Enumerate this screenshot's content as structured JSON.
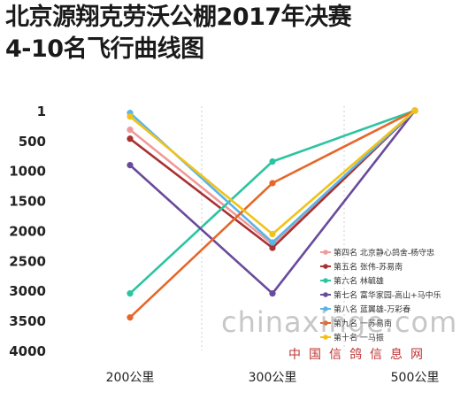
{
  "title": {
    "line1": "北京源翔克劳沃公棚2017年决赛",
    "line2": "4-10名飞行曲线图"
  },
  "chart_data": {
    "type": "line",
    "title": "北京源翔克劳沃公棚2017年决赛 4-10名飞行曲线图",
    "categories": [
      "200公里",
      "300公里",
      "500公里"
    ],
    "y_ticks": [
      "1",
      "500",
      "1000",
      "1500",
      "2000",
      "2500",
      "3000",
      "3500",
      "4000"
    ],
    "ylim": [
      1,
      4000
    ],
    "y_inverted": true,
    "grid": "vertical-dashed",
    "legend_position": "right",
    "series": [
      {
        "name": "第四名 北京静心鸽舍-杨守忠",
        "color": "#f09a9a",
        "values": [
          320,
          2230,
          1
        ]
      },
      {
        "name": "第五名 张伟-苏易南",
        "color": "#a83232",
        "values": [
          470,
          2290,
          1
        ]
      },
      {
        "name": "第六名 林毓雄",
        "color": "#2bc4a0",
        "values": [
          3050,
          850,
          1
        ]
      },
      {
        "name": "第七名 富华家园-高山+马中乐",
        "color": "#6a4a9c",
        "values": [
          910,
          3050,
          1
        ]
      },
      {
        "name": "第八名 蓝翼雄-万彩春",
        "color": "#5ab4e6",
        "values": [
          40,
          2200,
          1
        ]
      },
      {
        "name": "第九名 一苏易南",
        "color": "#e5672a",
        "values": [
          3450,
          1210,
          1
        ]
      },
      {
        "name": "第十名 一马振",
        "color": "#f1c21b",
        "values": [
          100,
          2060,
          1
        ]
      }
    ]
  },
  "watermark": {
    "site": "chinaxinge.com",
    "cn": "中国信鸽信息网"
  }
}
